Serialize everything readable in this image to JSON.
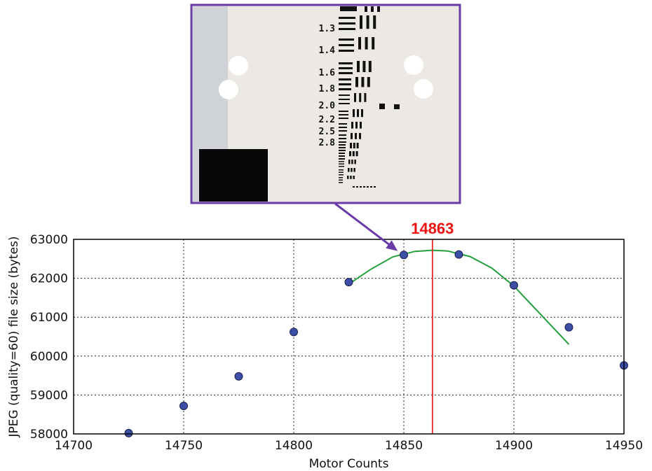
{
  "chart_data": {
    "type": "scatter",
    "xlabel": "Motor Counts",
    "ylabel": "JPEG (quality=60) file size (bytes)",
    "xlim": [
      14700,
      14950
    ],
    "ylim": [
      58000,
      63000
    ],
    "xticks": [
      14700,
      14750,
      14800,
      14850,
      14900,
      14950
    ],
    "yticks": [
      58000,
      59000,
      60000,
      61000,
      62000,
      63000
    ],
    "xtick_labels": [
      "14700",
      "14750",
      "14800",
      "14850",
      "14900",
      "14950"
    ],
    "ytick_labels": [
      "58000",
      "59000",
      "60000",
      "61000",
      "62000",
      "63000"
    ],
    "grid": true,
    "series": [
      {
        "kind": "points",
        "color": "#3b4fa6",
        "x": [
          14725,
          14750,
          14775,
          14800,
          14825,
          14850,
          14875,
          14900,
          14925,
          14950
        ],
        "y": [
          58020,
          58720,
          59480,
          60620,
          61900,
          62600,
          62610,
          61820,
          60740,
          59760
        ]
      },
      {
        "kind": "fit",
        "color": "#22a03c",
        "x": [
          14825,
          14835,
          14845,
          14855,
          14863,
          14870,
          14880,
          14890,
          14900,
          14910,
          14920,
          14925
        ],
        "y": [
          61850,
          62230,
          62550,
          62690,
          62720,
          62700,
          62560,
          62260,
          61800,
          61200,
          60600,
          60300
        ]
      }
    ],
    "marker_line": {
      "x": 14863,
      "color": "#ee2222",
      "label": "14863"
    },
    "inset": {
      "description_labels": [
        "1.3",
        "1.4",
        "1.6",
        "1.8",
        "2.0",
        "2.2",
        "2.5",
        "2.8"
      ],
      "border_color": "#6a3ba8",
      "arrow_to": {
        "x": 14850,
        "y": 62600
      }
    }
  }
}
